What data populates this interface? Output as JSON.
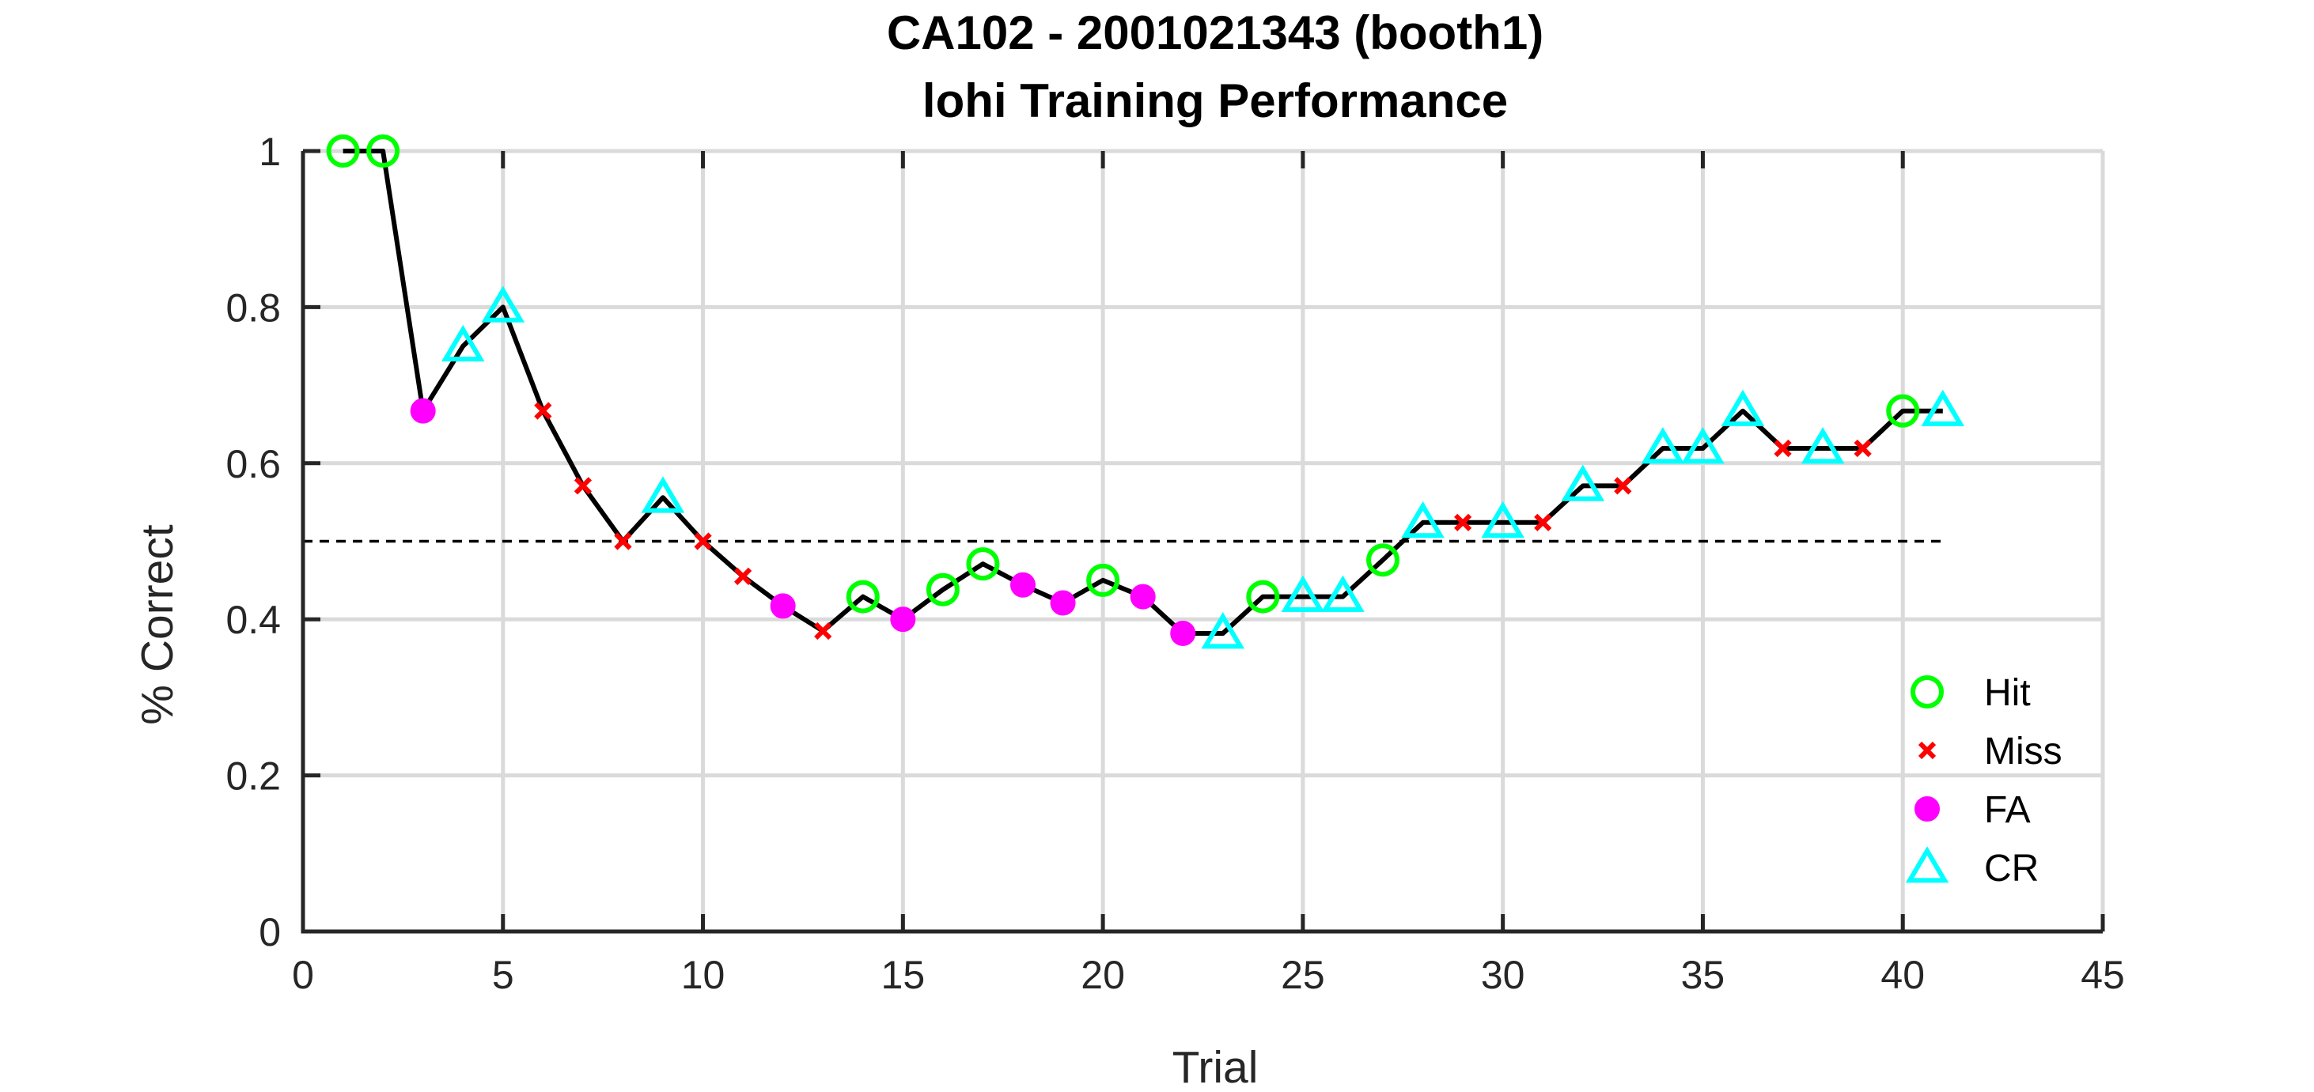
{
  "chart_data": {
    "type": "line",
    "title": [
      "CA102 - 2001021343 (booth1)",
      "lohi Training Performance"
    ],
    "xlabel": "Trial",
    "ylabel": "% Correct",
    "xlim": [
      0,
      45
    ],
    "ylim": [
      0,
      1
    ],
    "xticks": [
      0,
      5,
      10,
      15,
      20,
      25,
      30,
      35,
      40,
      45
    ],
    "yticks": [
      0,
      0.2,
      0.4,
      0.6,
      0.8,
      1
    ],
    "ytick_labels": [
      "0",
      "0.2",
      "0.4",
      "0.6",
      "0.8",
      "1"
    ],
    "grid": true,
    "legend_placement": "bottom-right",
    "chance_line": {
      "y": 0.5,
      "x_range": [
        0,
        41
      ],
      "style": "dashed",
      "color": "#000000"
    },
    "line_color": "#000000",
    "x": [
      1,
      2,
      3,
      4,
      5,
      6,
      7,
      8,
      9,
      10,
      11,
      12,
      13,
      14,
      15,
      16,
      17,
      18,
      19,
      20,
      21,
      22,
      23,
      24,
      25,
      26,
      27,
      28,
      29,
      30,
      31,
      32,
      33,
      34,
      35,
      36,
      37,
      38,
      39,
      40,
      41
    ],
    "y": [
      1,
      1,
      0.667,
      0.75,
      0.8,
      0.667,
      0.571,
      0.5,
      0.556,
      0.5,
      0.455,
      0.417,
      0.385,
      0.429,
      0.4,
      0.438,
      0.471,
      0.444,
      0.421,
      0.45,
      0.429,
      0.382,
      0.382,
      0.429,
      0.429,
      0.429,
      0.476,
      0.524,
      0.524,
      0.524,
      0.524,
      0.571,
      0.571,
      0.619,
      0.619,
      0.667,
      0.619,
      0.619,
      0.619,
      0.667,
      0.667
    ],
    "outcomes": [
      "Hit",
      "Hit",
      "FA",
      "CR",
      "CR",
      "Miss",
      "Miss",
      "Miss",
      "CR",
      "Miss",
      "Miss",
      "FA",
      "Miss",
      "Hit",
      "FA",
      "Hit",
      "Hit",
      "FA",
      "FA",
      "Hit",
      "FA",
      "FA",
      "CR",
      "Hit",
      "CR",
      "CR",
      "Hit",
      "CR",
      "Miss",
      "CR",
      "Miss",
      "CR",
      "Miss",
      "CR",
      "CR",
      "CR",
      "Miss",
      "CR",
      "Miss",
      "Hit",
      "CR"
    ],
    "series": [
      {
        "name": "Hit",
        "marker": "circle-open",
        "color": "#00ff00"
      },
      {
        "name": "Miss",
        "marker": "x",
        "color": "#ff0000"
      },
      {
        "name": "FA",
        "marker": "circle-filled",
        "color": "#ff00ff"
      },
      {
        "name": "CR",
        "marker": "triangle-open",
        "color": "#00ffff"
      }
    ]
  }
}
